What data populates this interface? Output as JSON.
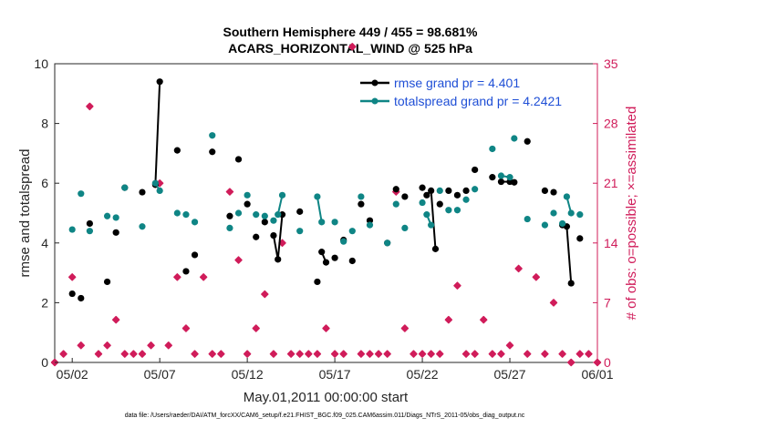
{
  "chart_data": {
    "type": "line",
    "title": [
      "Southern Hemisphere 449 / 455 = 98.681%",
      "ACARS_HORIZONTAL_WIND @ 525 hPa"
    ],
    "xlabel": "May.01,2011 00:00:00 start",
    "ylabel": "rmse and totalspread",
    "ylabel_right": "# of obs: o=possible; ×=assimilated",
    "footnote": "data file: /Users/raeder/DAI/ATM_forcXX/CAM6_setup/f.e21.FHIST_BGC.f09_025.CAM6assim.011/Diags_NTrS_2011-05/obs_diag_output.nc",
    "xlim": [
      0,
      31
    ],
    "ylim": [
      0,
      10
    ],
    "ylim_right": [
      0,
      35
    ],
    "xticks": [
      1,
      6,
      11,
      16,
      21,
      26,
      31
    ],
    "xtick_labels": [
      "05/02",
      "05/07",
      "05/12",
      "05/17",
      "05/22",
      "05/27",
      "06/01"
    ],
    "yticks": [
      0,
      2,
      4,
      6,
      8,
      10
    ],
    "yticks_right": [
      0,
      7,
      14,
      21,
      28,
      35
    ],
    "grid": false,
    "legend_position": "top-right",
    "colors": {
      "rmse": "#000000",
      "spread": "#0f8585",
      "obs": "#d01c5a",
      "legend_text": "#1f4fd6"
    },
    "series": [
      {
        "name": "rmse grand pr = 4.401",
        "color": "#000000",
        "x": [
          1.0,
          1.5,
          2.0,
          3.0,
          3.5,
          4.0,
          5.0,
          5.75,
          6.0,
          7.0,
          7.5,
          8.0,
          9.0,
          10.0,
          10.5,
          11.0,
          11.5,
          12.0,
          12.5,
          12.75,
          13.0,
          14.0,
          15.0,
          15.25,
          15.5,
          16.0,
          16.5,
          17.0,
          17.5,
          18.0,
          19.0,
          19.5,
          20.0,
          21.0,
          21.25,
          21.5,
          21.75,
          22.0,
          22.5,
          23.0,
          23.5,
          24.0,
          25.0,
          25.5,
          26.0,
          26.25,
          27.0,
          28.0,
          28.5,
          29.0,
          29.25,
          29.5,
          30.0
        ],
        "y": [
          2.3,
          2.15,
          4.65,
          2.7,
          4.35,
          5.85,
          5.7,
          5.95,
          9.4,
          7.1,
          3.05,
          3.6,
          7.05,
          4.9,
          6.8,
          5.3,
          4.2,
          4.7,
          4.25,
          3.45,
          4.95,
          5.05,
          2.7,
          3.7,
          3.35,
          3.5,
          4.1,
          3.4,
          5.3,
          4.75,
          4.0,
          5.8,
          5.55,
          5.85,
          5.6,
          5.75,
          3.8,
          5.3,
          5.75,
          5.6,
          5.75,
          6.45,
          6.2,
          6.05,
          6.05,
          6.03,
          7.4,
          5.75,
          5.7,
          4.6,
          4.55,
          2.65,
          4.15
        ],
        "connect": [
          [
            5.75,
            6.0
          ],
          [
            12.5,
            12.75
          ],
          [
            12.75,
            13.0
          ],
          [
            15.25,
            15.5
          ],
          [
            21.25,
            21.5
          ],
          [
            21.5,
            21.75
          ],
          [
            25.75,
            26.0
          ],
          [
            29.25,
            29.5
          ]
        ]
      },
      {
        "name": "totalspread grand pr = 4.2421",
        "color": "#0f8585",
        "x": [
          1.0,
          1.5,
          2.0,
          3.0,
          3.5,
          4.0,
          5.0,
          5.75,
          6.0,
          7.0,
          7.5,
          8.0,
          9.0,
          10.0,
          10.5,
          11.0,
          11.5,
          12.0,
          12.5,
          12.75,
          13.0,
          14.0,
          15.0,
          15.25,
          16.0,
          16.5,
          17.0,
          17.5,
          18.0,
          19.0,
          19.5,
          20.0,
          21.0,
          21.25,
          21.5,
          22.0,
          22.5,
          23.0,
          23.5,
          24.0,
          25.0,
          25.5,
          26.0,
          26.25,
          27.0,
          28.0,
          28.5,
          29.0,
          29.25,
          29.5,
          30.0
        ],
        "y": [
          4.45,
          5.65,
          4.4,
          4.9,
          4.85,
          5.85,
          4.55,
          6.0,
          5.75,
          5.0,
          4.95,
          4.7,
          7.6,
          4.5,
          5.0,
          5.6,
          4.95,
          4.9,
          4.75,
          4.95,
          5.6,
          4.4,
          5.55,
          4.7,
          4.7,
          4.05,
          4.4,
          5.55,
          4.6,
          4.0,
          5.3,
          4.5,
          5.35,
          4.95,
          4.6,
          5.75,
          5.1,
          5.1,
          5.45,
          5.8,
          7.15,
          6.25,
          6.2,
          7.5,
          4.8,
          4.6,
          5.0,
          4.65,
          5.55,
          5.0,
          4.95
        ],
        "connect": [
          [
            5.75,
            6.0
          ],
          [
            12.75,
            13.0
          ],
          [
            15.0,
            15.25
          ],
          [
            21.25,
            21.5
          ],
          [
            25.5,
            25.75
          ],
          [
            25.75,
            26.0
          ],
          [
            29.25,
            29.5
          ]
        ]
      },
      {
        "name": "obs assimilated",
        "color": "#d01c5a",
        "x": [
          0.0,
          0.5,
          1.0,
          1.5,
          2.0,
          2.5,
          3.0,
          3.5,
          4.0,
          4.5,
          5.0,
          5.5,
          6.0,
          6.5,
          7.0,
          7.5,
          8.0,
          8.5,
          9.0,
          9.5,
          10.0,
          10.5,
          11.0,
          11.5,
          12.0,
          12.5,
          13.0,
          13.5,
          14.0,
          14.5,
          15.0,
          15.5,
          16.0,
          16.5,
          17.0,
          17.5,
          18.0,
          18.5,
          19.0,
          19.5,
          20.0,
          20.5,
          21.0,
          21.5,
          22.0,
          22.5,
          23.0,
          23.5,
          24.0,
          24.5,
          25.0,
          25.5,
          26.0,
          26.5,
          27.0,
          27.5,
          28.0,
          28.5,
          29.0,
          29.5,
          30.0,
          30.5,
          31.0
        ],
        "y": [
          0,
          1,
          10,
          2,
          30,
          1,
          2,
          5,
          1,
          1,
          1,
          2,
          21,
          2,
          10,
          4,
          1,
          10,
          1,
          1,
          20,
          12,
          1,
          4,
          8,
          1,
          14,
          1,
          1,
          1,
          1,
          4,
          1,
          1,
          37,
          1,
          1,
          1,
          1,
          20,
          4,
          1,
          1,
          1,
          1,
          5,
          9,
          1,
          1,
          5,
          1,
          1,
          2,
          11,
          1,
          10,
          1,
          7,
          1,
          0,
          1,
          1,
          0
        ]
      }
    ],
    "legend": [
      {
        "label": "rmse grand pr = 4.401",
        "color": "#000000"
      },
      {
        "label": "totalspread grand pr = 4.2421",
        "color": "#0f8585"
      }
    ]
  }
}
